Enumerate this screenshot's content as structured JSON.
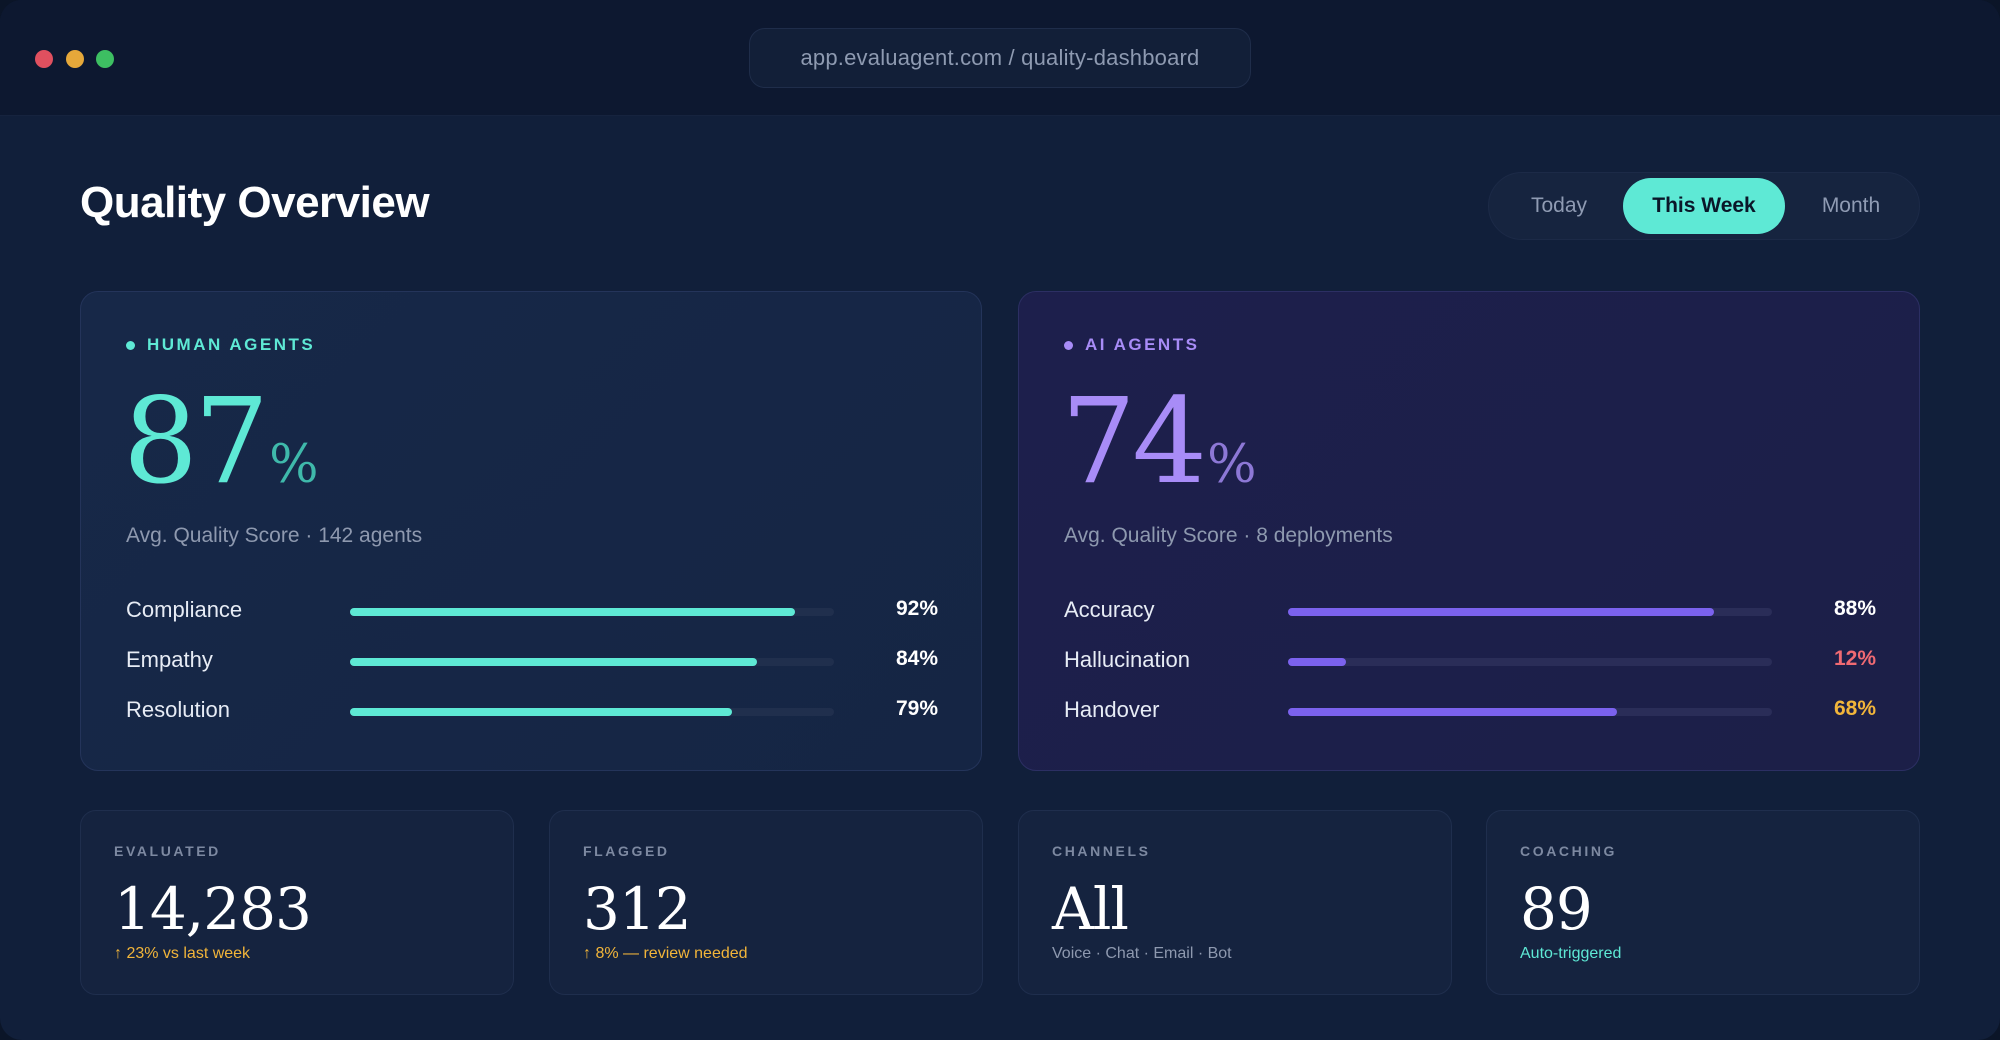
{
  "window": {
    "url": "app.evaluagent.com / quality-dashboard"
  },
  "header": {
    "title": "Quality Overview",
    "periods": [
      "Today",
      "This Week",
      "Month"
    ],
    "selected_period": "This Week"
  },
  "colors": {
    "accent_teal": "#5ee9d5",
    "accent_purple": "#8d73f0",
    "warning_orange": "#f2b53a",
    "danger_red": "#f06a72"
  },
  "human_agents": {
    "tag": "HUMAN AGENTS",
    "score": "87",
    "unit": "%",
    "subline": "Avg. Quality Score · 142 agents",
    "metrics": [
      {
        "label": "Compliance",
        "value": 92,
        "display": "92%"
      },
      {
        "label": "Empathy",
        "value": 84,
        "display": "84%"
      },
      {
        "label": "Resolution",
        "value": 79,
        "display": "79%"
      }
    ]
  },
  "ai_agents": {
    "tag": "AI AGENTS",
    "score": "74",
    "unit": "%",
    "subline": "Avg. Quality Score · 8 deployments",
    "metrics": [
      {
        "label": "Accuracy",
        "value": 88,
        "display": "88%"
      },
      {
        "label": "Hallucination",
        "value": 12,
        "display": "12%"
      },
      {
        "label": "Handover",
        "value": 68,
        "display": "68%"
      }
    ]
  },
  "stats": [
    {
      "label": "EVALUATED",
      "value": "14,283",
      "note": "↑ 23% vs last week"
    },
    {
      "label": "FLAGGED",
      "value": "312",
      "note": "↑ 8% — review needed"
    },
    {
      "label": "CHANNELS",
      "value": "All",
      "note": "Voice · Chat · Email · Bot"
    },
    {
      "label": "COACHING",
      "value": "89",
      "note": "Auto-triggered"
    }
  ]
}
